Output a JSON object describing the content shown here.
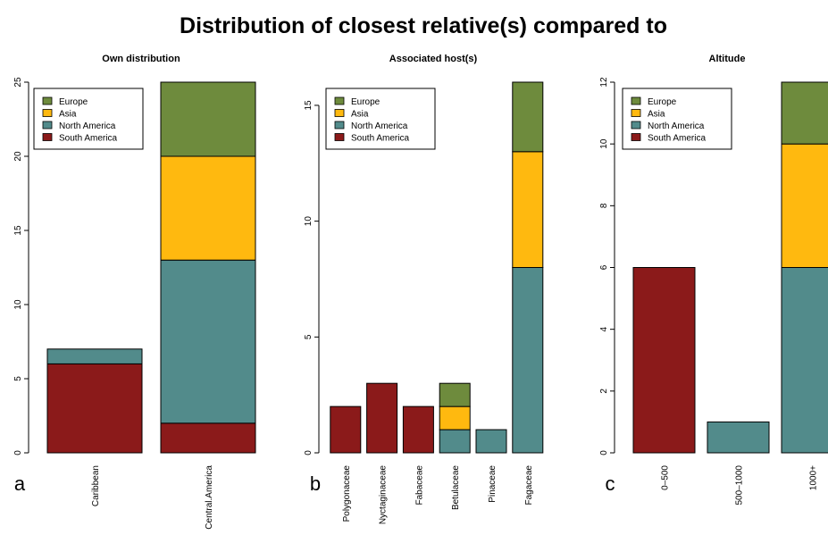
{
  "title": "Distribution of closest relative(s) compared to",
  "legend_entries": [
    {
      "name": "Europe",
      "color": "#6e8b3d"
    },
    {
      "name": "Asia",
      "color": "#ffb90f"
    },
    {
      "name": "North America",
      "color": "#528b8b"
    },
    {
      "name": "South America",
      "color": "#8b1a1a"
    }
  ],
  "chart_data": [
    {
      "type": "bar",
      "stacked": true,
      "panel_letter": "a",
      "title": "Own distribution",
      "categories": [
        "Caribbean",
        "Central.America"
      ],
      "ylim": [
        0,
        25
      ],
      "yticks": [
        0,
        5,
        10,
        15,
        20,
        25
      ],
      "legend_placement": "top-left",
      "series": [
        {
          "name": "South America",
          "values": [
            6,
            2
          ]
        },
        {
          "name": "North America",
          "values": [
            1,
            11
          ]
        },
        {
          "name": "Asia",
          "values": [
            0,
            7
          ]
        },
        {
          "name": "Europe",
          "values": [
            0,
            5
          ]
        }
      ]
    },
    {
      "type": "bar",
      "stacked": true,
      "panel_letter": "b",
      "title": "Associated host(s)",
      "categories": [
        "Polygonaceae",
        "Nyctaginaceae",
        "Fabaceae",
        "Betulaceae",
        "Pinaceae",
        "Fagaceae"
      ],
      "ylim": [
        0,
        16
      ],
      "yticks": [
        0,
        5,
        10,
        15
      ],
      "legend_placement": "top-left",
      "series": [
        {
          "name": "South America",
          "values": [
            2,
            3,
            2,
            0,
            0,
            0
          ]
        },
        {
          "name": "North America",
          "values": [
            0,
            0,
            0,
            1,
            1,
            8
          ]
        },
        {
          "name": "Asia",
          "values": [
            0,
            0,
            0,
            1,
            0,
            5
          ]
        },
        {
          "name": "Europe",
          "values": [
            0,
            0,
            0,
            1,
            0,
            3
          ]
        }
      ]
    },
    {
      "type": "bar",
      "stacked": true,
      "panel_letter": "c",
      "title": "Altitude",
      "categories": [
        "0–500",
        "500–1000",
        "1000+"
      ],
      "ylim": [
        0,
        12
      ],
      "yticks": [
        0,
        2,
        4,
        6,
        8,
        10,
        12
      ],
      "legend_placement": "top-left",
      "series": [
        {
          "name": "South America",
          "values": [
            6,
            0,
            0
          ]
        },
        {
          "name": "North America",
          "values": [
            0,
            1,
            6
          ]
        },
        {
          "name": "Asia",
          "values": [
            0,
            0,
            4
          ]
        },
        {
          "name": "Europe",
          "values": [
            0,
            0,
            2
          ]
        }
      ]
    }
  ]
}
